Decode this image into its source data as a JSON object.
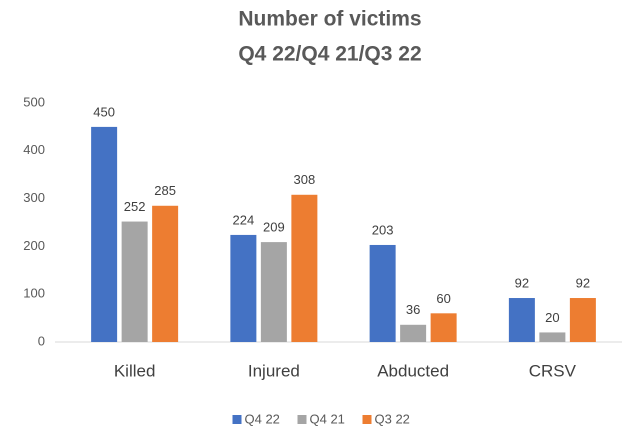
{
  "chart_data": {
    "type": "bar",
    "title": "Number of victims",
    "subtitle": "Q4 22/Q4 21/Q3 22",
    "categories": [
      "Killed",
      "Injured",
      "Abducted",
      "CRSV"
    ],
    "series": [
      {
        "name": "Q4 22",
        "color": "#4472c4",
        "values": [
          450,
          224,
          203,
          92
        ]
      },
      {
        "name": "Q4 21",
        "color": "#a5a5a5",
        "values": [
          252,
          209,
          36,
          20
        ]
      },
      {
        "name": "Q3 22",
        "color": "#ed7d31",
        "values": [
          285,
          308,
          60,
          92
        ]
      }
    ],
    "ylim": [
      0,
      500
    ],
    "yticks": [
      0,
      100,
      200,
      300,
      400,
      500
    ],
    "grid": false,
    "legend": "bottom"
  }
}
